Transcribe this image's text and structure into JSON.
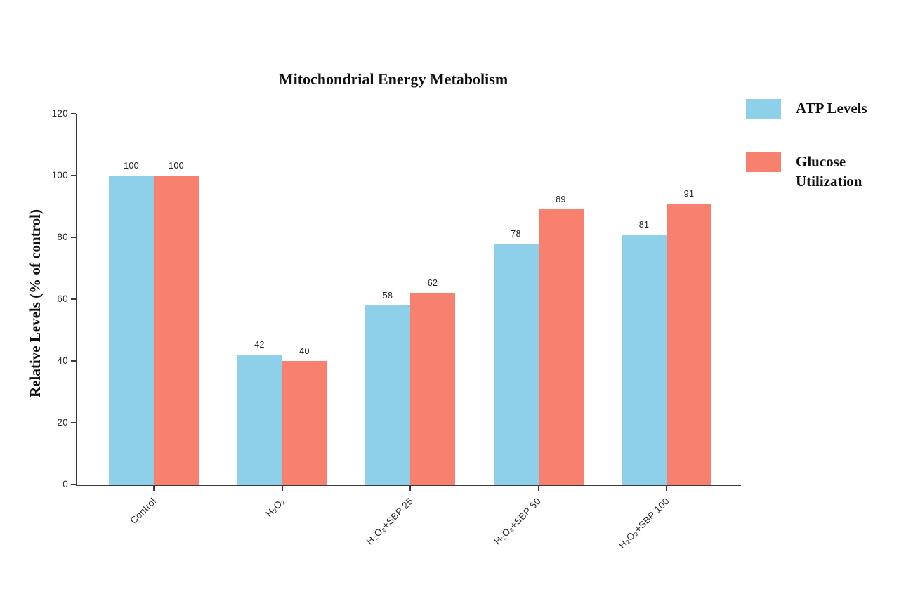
{
  "chart_data": {
    "type": "bar",
    "title": "Mitochondrial Energy Metabolism",
    "xlabel": "",
    "ylabel": "Relative Levels (% of control)",
    "categories": [
      "Control",
      "H₂O₂",
      "H₂O₂+SBP 25",
      "H₂O₂+SBP 50",
      "H₂O₂+SBP 100"
    ],
    "series": [
      {
        "name": "ATP Levels",
        "color": "#8ED0EA",
        "values": [
          100,
          42,
          58,
          78,
          81
        ]
      },
      {
        "name": "Glucose Utilization",
        "color": "#F8806F",
        "values": [
          100,
          40,
          62,
          89,
          91
        ]
      }
    ],
    "ylim": [
      0,
      120
    ],
    "ytick_step": 20,
    "yticks": [
      0,
      20,
      40,
      60,
      80,
      100,
      120
    ],
    "grid": false,
    "bar_labels": true,
    "legend_position": "top-right",
    "x_label_rotation_deg": 45,
    "axis_color": "#3a3a3a"
  }
}
